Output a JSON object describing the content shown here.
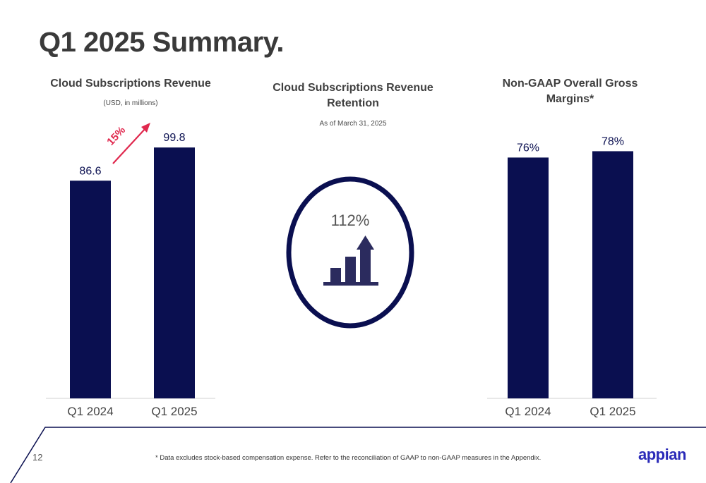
{
  "page": {
    "title": "Q1 2025 Summary.",
    "page_number": "12",
    "footnote": "* Data excludes stock-based compensation expense. Refer to the reconciliation of GAAP to non-GAAP measures in the Appendix.",
    "logo_text": "appian"
  },
  "colors": {
    "bar": "#0a0f50",
    "growth_arrow": "#e0284e",
    "text_dark": "#3f3f3f",
    "accent_line": "#0a0f50",
    "logo": "#2a2ab8"
  },
  "retention": {
    "title": "Cloud Subscriptions Revenue Retention",
    "subtitle": "As of March 31, 2025",
    "value": "112%",
    "icon": "growth-bars-arrow-icon"
  },
  "chart_data": [
    {
      "type": "bar",
      "title": "Cloud Subscriptions Revenue",
      "subtitle": "(USD, in millions)",
      "categories": [
        "Q1 2024",
        "Q1 2025"
      ],
      "values": [
        86.6,
        99.8
      ],
      "data_labels": [
        "86.6",
        "99.8"
      ],
      "ylim": [
        0,
        115
      ],
      "annotation": "15%",
      "grid": false,
      "legend": "none"
    },
    {
      "type": "bar",
      "title": "Non-GAAP Overall Gross Margins*",
      "categories": [
        "Q1 2024",
        "Q1 2025"
      ],
      "values": [
        76,
        78
      ],
      "data_labels": [
        "76%",
        "78%"
      ],
      "ylim": [
        0,
        89
      ],
      "grid": false,
      "legend": "none"
    }
  ]
}
